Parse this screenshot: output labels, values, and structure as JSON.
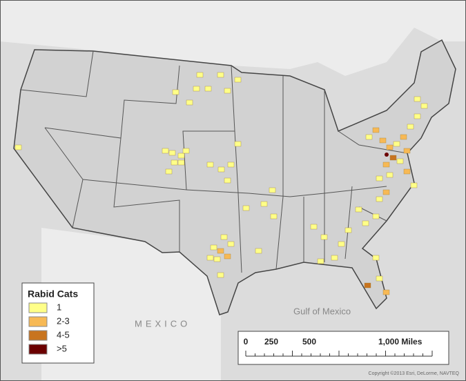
{
  "map": {
    "legend": {
      "title": "Rabid Cats",
      "items": [
        {
          "label": "1",
          "color": "#ffff88"
        },
        {
          "label": "2-3",
          "color": "#f7b955"
        },
        {
          "label": "4-5",
          "color": "#c8741f"
        },
        {
          "label": ">5",
          "color": "#6b0000"
        }
      ]
    },
    "labels": {
      "water": "Gulf of Mexico",
      "country": "MEXICO"
    },
    "scale_bar": {
      "ticks": [
        "0",
        "250",
        "500",
        "1,000 Miles"
      ]
    },
    "copyright": "Copyright ©2013 Esri, DeLorme, NAVTEQ"
  }
}
